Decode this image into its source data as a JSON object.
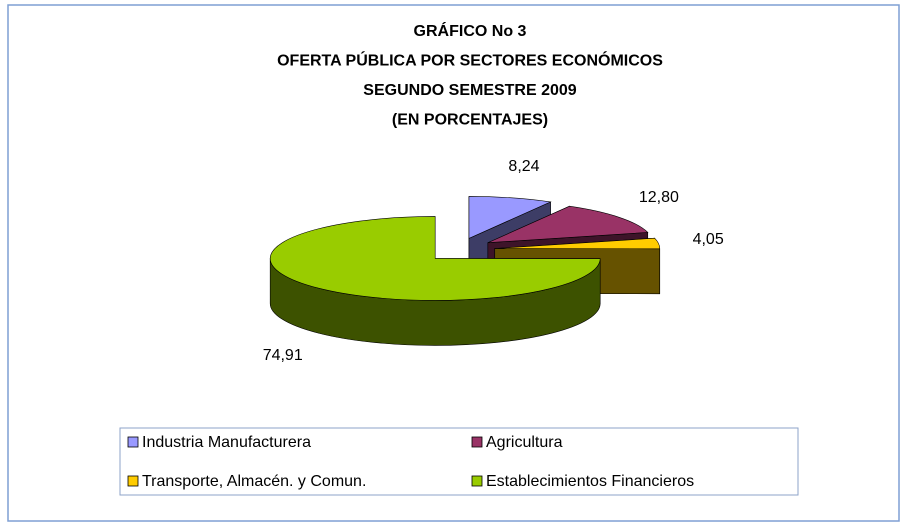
{
  "chart_data": {
    "type": "pie",
    "title": [
      "GRÁFICO No 3",
      "OFERTA PÚBLICA POR SECTORES ECONÓMICOS",
      "SEGUNDO SEMESTRE 2009",
      "(EN PORCENTAJES)"
    ],
    "categories": [
      "Industria Manufacturera",
      "Agricultura",
      "Transporte, Almacén. y Comun.",
      "Establecimientos Financieros"
    ],
    "values": [
      8.24,
      12.8,
      4.05,
      74.91
    ],
    "value_labels": [
      "8,24",
      "12,80",
      "4,05",
      "74,91"
    ],
    "colors": [
      "#9999ff",
      "#993366",
      "#ffcc00",
      "#99cc00"
    ],
    "legend": "bottom"
  }
}
